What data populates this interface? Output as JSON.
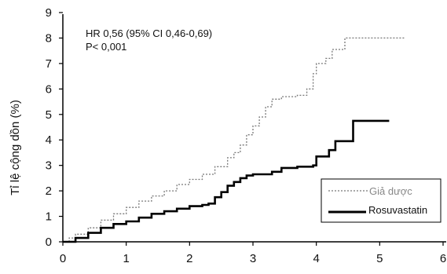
{
  "chart_data": {
    "type": "line",
    "ylabel": "Tỉ lệ cộng dồn (%)",
    "xlabel": "",
    "xlim": [
      0,
      6
    ],
    "ylim": [
      0,
      9
    ],
    "x_ticks": [
      "0",
      "1",
      "2",
      "3",
      "4",
      "5",
      "6"
    ],
    "y_ticks": [
      "0",
      "1",
      "2",
      "3",
      "4",
      "5",
      "6",
      "7",
      "8",
      "9"
    ],
    "annotations": [
      "HR 0,56 (95% CI 0,46-0,69)",
      "P< 0,001"
    ],
    "legend_position": "bottom-right",
    "series": [
      {
        "name": "Giả dược",
        "style": "dotted",
        "color": "#777777",
        "points": [
          [
            0,
            0
          ],
          [
            0.1,
            0.15
          ],
          [
            0.2,
            0.3
          ],
          [
            0.4,
            0.55
          ],
          [
            0.6,
            0.85
          ],
          [
            0.8,
            1.1
          ],
          [
            1.0,
            1.35
          ],
          [
            1.2,
            1.6
          ],
          [
            1.4,
            1.8
          ],
          [
            1.6,
            2.0
          ],
          [
            1.8,
            2.25
          ],
          [
            2.0,
            2.45
          ],
          [
            2.2,
            2.65
          ],
          [
            2.4,
            2.95
          ],
          [
            2.6,
            3.3
          ],
          [
            2.7,
            3.5
          ],
          [
            2.8,
            3.8
          ],
          [
            2.9,
            4.2
          ],
          [
            3.0,
            4.55
          ],
          [
            3.1,
            4.9
          ],
          [
            3.2,
            5.3
          ],
          [
            3.3,
            5.6
          ],
          [
            3.45,
            5.7
          ],
          [
            3.6,
            5.7
          ],
          [
            3.7,
            5.75
          ],
          [
            3.85,
            6.0
          ],
          [
            3.95,
            6.6
          ],
          [
            4.0,
            7.0
          ],
          [
            4.15,
            7.2
          ],
          [
            4.25,
            7.55
          ],
          [
            4.4,
            7.55
          ],
          [
            4.45,
            8.0
          ],
          [
            5.4,
            8.0
          ]
        ]
      },
      {
        "name": "Rosuvastatin",
        "style": "solid",
        "color": "#000000",
        "points": [
          [
            0,
            0
          ],
          [
            0.2,
            0.15
          ],
          [
            0.4,
            0.35
          ],
          [
            0.6,
            0.55
          ],
          [
            0.8,
            0.7
          ],
          [
            1.0,
            0.8
          ],
          [
            1.2,
            0.95
          ],
          [
            1.4,
            1.1
          ],
          [
            1.6,
            1.2
          ],
          [
            1.8,
            1.3
          ],
          [
            2.0,
            1.4
          ],
          [
            2.2,
            1.45
          ],
          [
            2.3,
            1.5
          ],
          [
            2.4,
            1.75
          ],
          [
            2.5,
            1.95
          ],
          [
            2.6,
            2.2
          ],
          [
            2.7,
            2.35
          ],
          [
            2.8,
            2.5
          ],
          [
            2.9,
            2.6
          ],
          [
            3.0,
            2.65
          ],
          [
            3.2,
            2.65
          ],
          [
            3.3,
            2.75
          ],
          [
            3.45,
            2.9
          ],
          [
            3.7,
            2.95
          ],
          [
            3.95,
            3.0
          ],
          [
            4.0,
            3.35
          ],
          [
            4.15,
            3.35
          ],
          [
            4.2,
            3.6
          ],
          [
            4.3,
            3.95
          ],
          [
            4.55,
            3.95
          ],
          [
            4.58,
            4.75
          ],
          [
            5.15,
            4.75
          ]
        ]
      }
    ]
  }
}
